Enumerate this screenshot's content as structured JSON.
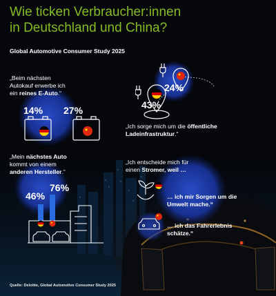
{
  "title": {
    "line1": "Wie ticken Verbraucher:innen",
    "line2": "in Deutschland und China?"
  },
  "subtitle": "Global Automotive Consumer Study 2025",
  "section1": {
    "quote_line1": "„Beim nächsten",
    "quote_line2": "Autokauf erwerbe ich",
    "quote_pre": "ein ",
    "quote_bold": "reines E-Auto",
    "quote_post": ".“",
    "germany_pct": "14%",
    "china_pct": "27%"
  },
  "section2": {
    "germany_pct": "43%",
    "china_pct": "24%",
    "quote_pre": "„Ich sorge mich um die ",
    "quote_bold1": "öffentliche",
    "quote_bold2": "Ladeinfrastruktur",
    "quote_post": ".“"
  },
  "section3": {
    "quote_pre": "„Mein ",
    "quote_bold1": "nächstes Auto",
    "quote_line2": "kommt von einem",
    "quote_bold2": "anderen Hersteller",
    "quote_post": ".“",
    "germany_pct": "46%",
    "china_pct": "76%"
  },
  "section4": {
    "quote_line1": "„Ich entscheide mich für",
    "quote_pre": "einen ",
    "quote_bold": "Stromer, weil …",
    "reason1_line1": "… ich mir Sorgen um die",
    "reason1_line2": "Umwelt mache.“",
    "reason2_line1": "… ich das Fahrerlebnis",
    "reason2_line2": "schätze.“"
  },
  "source": "Quelle: Deloitte, Global Automotive Consumer Study 2025",
  "colors": {
    "accent": "#86bc25",
    "blue": "#1e3fa8",
    "china_red": "#de2910",
    "china_yellow": "#ffde00"
  },
  "icons": [
    "car-battery-icon",
    "charging-location-pin-icon",
    "car-factory-icon",
    "earth-plant-icon",
    "car-steering-icon",
    "germany-flag-icon",
    "china-flag-icon"
  ]
}
